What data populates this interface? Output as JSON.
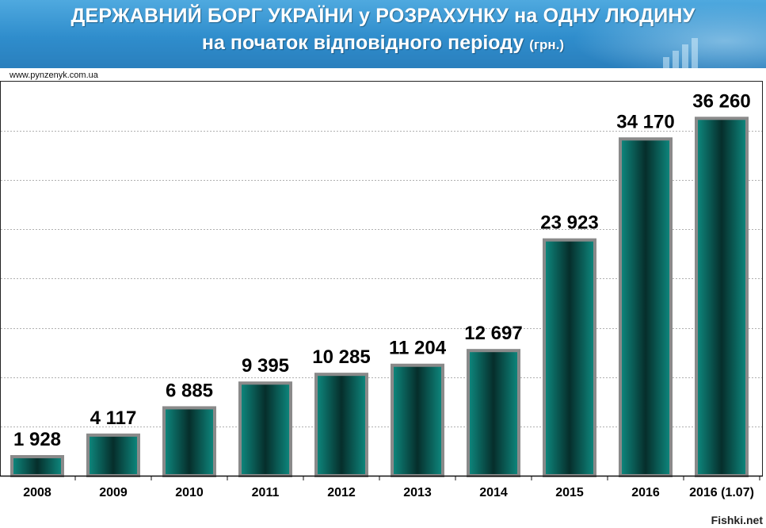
{
  "header": {
    "title_line1": "ДЕРЖАВНИЙ БОРГ УКРАЇНИ у РОЗРАХУНКУ на ОДНУ ЛЮДИНУ",
    "title_line2": "на початок відповідного періоду",
    "title_unit": "(грн.)"
  },
  "source": "www.pynzenyk.com.ua",
  "watermark": "Fishki.net",
  "colors": {
    "header_bg": "#3a97d4",
    "bar_dark": "#062e2b",
    "bar_light": "#0e8a80",
    "bar_border": "#8a8a8a",
    "grid": "#b0b0b0"
  },
  "chart_data": {
    "type": "bar",
    "categories": [
      "2008",
      "2009",
      "2010",
      "2011",
      "2012",
      "2013",
      "2014",
      "2015",
      "2016",
      "2016 (1.07)"
    ],
    "values": [
      1928,
      4117,
      6885,
      9395,
      10285,
      11204,
      12697,
      23923,
      34170,
      36260
    ],
    "value_labels": [
      "1 928",
      "4 117",
      "6 885",
      "9 395",
      "10 285",
      "11 204",
      "12 697",
      "23 923",
      "34 170",
      "36 260"
    ],
    "ylim": [
      0,
      40000
    ],
    "y_gridlines": [
      5000,
      10000,
      15000,
      20000,
      25000,
      30000,
      35000
    ],
    "grid": true,
    "legend": "none",
    "y_tick_labels_visible": false
  }
}
